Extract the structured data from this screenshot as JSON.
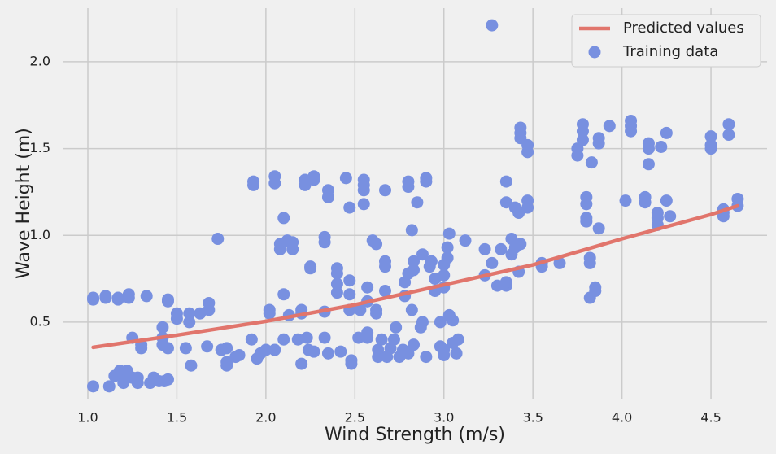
{
  "chart_data": {
    "type": "scatter",
    "xlabel": "Wind Strength (m/s)",
    "ylabel": "Wave Height (m)",
    "xlim": [
      0.863,
      4.815
    ],
    "ylim": [
      0.059,
      2.309
    ],
    "xticks": [
      {
        "value": 1.0,
        "label": "1.0"
      },
      1.5,
      {
        "value": 2.0,
        "label": "2.0"
      },
      2.5,
      {
        "value": 3.0,
        "label": "3.0"
      },
      3.5,
      {
        "value": 4.0,
        "label": "4.0"
      },
      4.5
    ],
    "yticks": [
      0.5,
      {
        "value": 1.0,
        "label": "1.0"
      },
      1.5,
      {
        "value": 2.0,
        "label": "2.0"
      }
    ],
    "grid": true,
    "legend": "upper right",
    "series": [
      {
        "name": "Predicted values",
        "type": "line",
        "color": "#e1756c",
        "x": [
          1.03,
          1.5,
          2.0,
          2.5,
          3.0,
          3.5,
          4.0,
          4.5,
          4.65
        ],
        "values": [
          0.355,
          0.425,
          0.505,
          0.6,
          0.715,
          0.83,
          0.98,
          1.12,
          1.17
        ]
      },
      {
        "name": "Training data",
        "type": "scatter",
        "color": "#7890e0",
        "x": [
          1.03,
          1.03,
          1.03,
          1.1,
          1.1,
          1.12,
          1.17,
          1.17,
          1.23,
          1.23,
          1.15,
          1.18,
          1.2,
          1.2,
          1.22,
          1.25,
          1.25,
          1.28,
          1.28,
          1.3,
          1.3,
          1.33,
          1.35,
          1.37,
          1.4,
          1.42,
          1.42,
          1.42,
          1.43,
          1.45,
          1.45,
          1.45,
          1.45,
          1.5,
          1.5,
          1.55,
          1.57,
          1.57,
          1.58,
          1.63,
          1.67,
          1.68,
          1.68,
          1.73,
          1.75,
          1.78,
          1.78,
          1.78,
          1.83,
          1.85,
          1.92,
          1.93,
          1.93,
          1.95,
          1.97,
          2.0,
          2.02,
          2.02,
          2.05,
          2.05,
          2.05,
          2.08,
          2.08,
          2.1,
          2.1,
          2.1,
          2.12,
          2.13,
          2.15,
          2.15,
          2.18,
          2.2,
          2.2,
          2.2,
          2.22,
          2.22,
          2.23,
          2.24,
          2.25,
          2.25,
          2.27,
          2.27,
          2.27,
          2.33,
          2.33,
          2.33,
          2.33,
          2.35,
          2.35,
          2.35,
          2.4,
          2.4,
          2.4,
          2.4,
          2.42,
          2.45,
          2.47,
          2.47,
          2.47,
          2.47,
          2.48,
          2.48,
          2.52,
          2.53,
          2.55,
          2.55,
          2.55,
          2.55,
          2.57,
          2.57,
          2.57,
          2.57,
          2.6,
          2.62,
          2.62,
          2.62,
          2.63,
          2.63,
          2.65,
          2.67,
          2.67,
          2.67,
          2.67,
          2.68,
          2.7,
          2.72,
          2.73,
          2.75,
          2.77,
          2.78,
          2.78,
          2.8,
          2.8,
          2.8,
          2.8,
          2.82,
          2.82,
          2.83,
          2.83,
          2.83,
          2.85,
          2.87,
          2.88,
          2.88,
          2.9,
          2.9,
          2.9,
          2.92,
          2.93,
          2.95,
          2.95,
          2.98,
          2.98,
          3.0,
          3.0,
          3.0,
          3.0,
          3.0,
          3.02,
          3.02,
          3.03,
          3.03,
          3.05,
          3.05,
          3.07,
          3.08,
          3.12,
          3.23,
          3.23,
          3.27,
          3.27,
          3.3,
          3.32,
          3.35,
          3.35,
          3.35,
          3.35,
          3.38,
          3.38,
          3.4,
          3.4,
          3.42,
          3.42,
          3.43,
          3.43,
          3.43,
          3.43,
          3.47,
          3.47,
          3.47,
          3.47,
          3.55,
          3.55,
          3.65,
          3.75,
          3.75,
          3.78,
          3.78,
          3.78,
          3.8,
          3.8,
          3.8,
          3.8,
          3.82,
          3.82,
          3.82,
          3.83,
          3.85,
          3.85,
          3.87,
          3.87,
          3.87,
          3.93,
          4.02,
          4.05,
          4.05,
          4.05,
          4.13,
          4.13,
          4.15,
          4.15,
          4.15,
          4.2,
          4.2,
          4.2,
          4.22,
          4.25,
          4.25,
          4.27,
          4.5,
          4.5,
          4.5,
          4.57,
          4.57,
          4.57,
          4.6,
          4.6,
          4.65,
          4.65
        ],
        "values": [
          0.63,
          0.64,
          0.13,
          0.64,
          0.65,
          0.13,
          0.63,
          0.64,
          0.64,
          0.66,
          0.19,
          0.22,
          0.2,
          0.15,
          0.22,
          0.18,
          0.41,
          0.15,
          0.18,
          0.35,
          0.37,
          0.65,
          0.15,
          0.18,
          0.16,
          0.37,
          0.41,
          0.47,
          0.16,
          0.62,
          0.63,
          0.35,
          0.17,
          0.52,
          0.55,
          0.35,
          0.55,
          0.5,
          0.25,
          0.55,
          0.36,
          0.57,
          0.61,
          0.98,
          0.34,
          0.35,
          0.27,
          0.25,
          0.3,
          0.31,
          0.4,
          1.29,
          1.31,
          0.29,
          0.32,
          0.34,
          0.55,
          0.57,
          1.3,
          1.34,
          0.34,
          0.95,
          0.92,
          0.4,
          0.66,
          1.1,
          0.97,
          0.54,
          0.92,
          0.96,
          0.4,
          0.26,
          0.55,
          0.57,
          1.29,
          1.32,
          0.41,
          0.34,
          0.81,
          0.82,
          1.32,
          1.34,
          0.33,
          0.56,
          0.41,
          0.96,
          0.99,
          1.22,
          1.26,
          0.32,
          0.81,
          0.78,
          0.72,
          0.67,
          0.33,
          1.33,
          1.16,
          0.74,
          0.66,
          0.57,
          0.28,
          0.26,
          0.41,
          0.57,
          1.26,
          1.29,
          1.32,
          1.18,
          0.44,
          0.41,
          0.62,
          0.7,
          0.97,
          0.95,
          0.57,
          0.55,
          0.34,
          0.3,
          0.4,
          0.82,
          0.85,
          0.68,
          1.26,
          0.3,
          0.35,
          0.4,
          0.47,
          0.3,
          0.34,
          0.65,
          0.73,
          0.78,
          1.28,
          1.31,
          0.32,
          1.03,
          0.57,
          0.85,
          0.8,
          0.37,
          1.19,
          0.47,
          0.5,
          0.89,
          1.31,
          1.33,
          0.3,
          0.82,
          0.85,
          0.75,
          0.68,
          0.5,
          0.36,
          0.31,
          0.34,
          0.7,
          0.77,
          0.83,
          0.87,
          0.93,
          1.01,
          0.54,
          0.51,
          0.38,
          0.32,
          0.4,
          0.97,
          0.77,
          0.92,
          2.21,
          0.84,
          0.71,
          0.92,
          0.71,
          0.73,
          1.19,
          1.31,
          0.98,
          0.89,
          0.93,
          1.16,
          1.13,
          0.79,
          1.59,
          1.62,
          1.56,
          0.95,
          1.48,
          1.52,
          1.2,
          1.16,
          0.82,
          0.84,
          0.84,
          1.46,
          1.5,
          1.55,
          1.6,
          1.64,
          1.22,
          1.18,
          1.1,
          1.08,
          0.87,
          0.84,
          0.64,
          1.42,
          0.7,
          0.68,
          1.04,
          1.53,
          1.56,
          1.63,
          1.2,
          1.6,
          1.63,
          1.66,
          1.22,
          1.19,
          1.41,
          1.5,
          1.53,
          1.06,
          1.1,
          1.13,
          1.51,
          1.2,
          1.59,
          1.11,
          1.5,
          1.52,
          1.57,
          1.11,
          1.13,
          1.15,
          1.58,
          1.64,
          1.17,
          1.21
        ]
      }
    ]
  }
}
